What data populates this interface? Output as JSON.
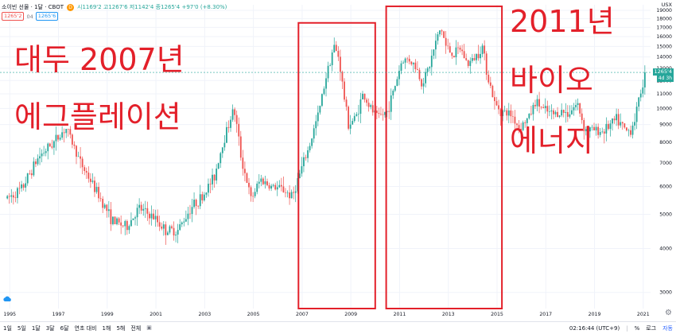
{
  "header": {
    "symbol": "소이빈 선물 · 1달 · CBOT",
    "indicator_letter": "D",
    "ohlc": "시1169'2 고1267'6 저1142'4 종1265'4 +97'0 (+8.30%)",
    "price_box": "1265'2",
    "mid_value": "04",
    "price_box2": "1265'6",
    "currency": "USX"
  },
  "annotations": {
    "left_line1": "대두 2007년",
    "left_line2": "에그플레이션",
    "right_line1": "2011년",
    "right_line2": "바이오",
    "right_line3": "에너지"
  },
  "price_tag": {
    "value": "1265'4",
    "countdown": "4d 3h"
  },
  "toolbar": {
    "ranges": [
      "1일",
      "5일",
      "1달",
      "3달",
      "6달",
      "연초 대비",
      "1해",
      "5해",
      "전체"
    ],
    "calendar_icon": "calendar-icon",
    "time": "02:16:44 (UTC+9)",
    "percent": "%",
    "log": "로그",
    "auto": "자동",
    "gear_icon": "gear-icon"
  },
  "colors": {
    "up": "#26a69a",
    "down": "#ef5350",
    "annotation": "#e3202a",
    "box": "#e3202a"
  },
  "chart_data": {
    "type": "candlestick",
    "interval": "1 month",
    "x_tick_labels": [
      "1995",
      "1997",
      "1999",
      "2001",
      "2003",
      "2005",
      "2007",
      "2009",
      "2011",
      "2013",
      "2015",
      "2017",
      "2019",
      "2021"
    ],
    "y_tick_labels": [
      "3000",
      "4000",
      "5000",
      "6000",
      "7000",
      "8000",
      "9000",
      "10000",
      "11000",
      "12000",
      "13000",
      "14000",
      "15000",
      "16000",
      "17000",
      "18000",
      "19000"
    ],
    "x_range": [
      1994.6,
      2021.3
    ],
    "y_range": [
      2700,
      19700
    ],
    "y_scale": "log",
    "last_price": 12654,
    "highlight_boxes": [
      {
        "label": "2007-2009",
        "x_from": 2006.85,
        "x_to": 2010.0,
        "y_from": 2700,
        "y_to": 17500
      },
      {
        "label": "2011-2015",
        "x_from": 2010.45,
        "x_to": 2015.2,
        "y_from": 2700,
        "y_to": 19500
      }
    ],
    "anchors": [
      [
        1994.9,
        5550
      ],
      [
        1995.5,
        5900
      ],
      [
        1996.2,
        7300
      ],
      [
        1996.8,
        8000
      ],
      [
        1997.3,
        8800
      ],
      [
        1997.9,
        7000
      ],
      [
        1998.5,
        5900
      ],
      [
        1999.2,
        4800
      ],
      [
        1999.8,
        4600
      ],
      [
        2000.3,
        5200
      ],
      [
        2000.9,
        4900
      ],
      [
        2001.4,
        4500
      ],
      [
        2001.9,
        4500
      ],
      [
        2002.5,
        5300
      ],
      [
        2002.9,
        5600
      ],
      [
        2003.4,
        6400
      ],
      [
        2003.8,
        8200
      ],
      [
        2004.2,
        10000
      ],
      [
        2004.5,
        7200
      ],
      [
        2004.9,
        5500
      ],
      [
        2005.3,
        6300
      ],
      [
        2005.7,
        6000
      ],
      [
        2006.2,
        5900
      ],
      [
        2006.6,
        5600
      ],
      [
        2006.9,
        6500
      ],
      [
        2007.3,
        7800
      ],
      [
        2007.7,
        9800
      ],
      [
        2008.0,
        12500
      ],
      [
        2008.3,
        15000
      ],
      [
        2008.5,
        14000
      ],
      [
        2008.7,
        11000
      ],
      [
        2008.9,
        9000
      ],
      [
        2009.2,
        9400
      ],
      [
        2009.5,
        11000
      ],
      [
        2009.8,
        10000
      ],
      [
        2010.1,
        9400
      ],
      [
        2010.5,
        9800
      ],
      [
        2010.8,
        11500
      ],
      [
        2011.1,
        13700
      ],
      [
        2011.4,
        13800
      ],
      [
        2011.7,
        13000
      ],
      [
        2011.9,
        11800
      ],
      [
        2012.2,
        13000
      ],
      [
        2012.5,
        15500
      ],
      [
        2012.7,
        17000
      ],
      [
        2012.9,
        15000
      ],
      [
        2013.2,
        14200
      ],
      [
        2013.5,
        14800
      ],
      [
        2013.8,
        13300
      ],
      [
        2014.1,
        14000
      ],
      [
        2014.4,
        15000
      ],
      [
        2014.6,
        12500
      ],
      [
        2014.9,
        10300
      ],
      [
        2015.2,
        9800
      ],
      [
        2015.6,
        9600
      ],
      [
        2015.9,
        8800
      ],
      [
        2016.3,
        9400
      ],
      [
        2016.6,
        10500
      ],
      [
        2016.9,
        9900
      ],
      [
        2017.3,
        9600
      ],
      [
        2017.6,
        9800
      ],
      [
        2017.9,
        9700
      ],
      [
        2018.3,
        10300
      ],
      [
        2018.6,
        8700
      ],
      [
        2018.9,
        8700
      ],
      [
        2019.3,
        8600
      ],
      [
        2019.6,
        8900
      ],
      [
        2019.9,
        9300
      ],
      [
        2020.3,
        8600
      ],
      [
        2020.5,
        8700
      ],
      [
        2020.7,
        9600
      ],
      [
        2020.9,
        11200
      ],
      [
        2021.1,
        12654
      ]
    ]
  }
}
